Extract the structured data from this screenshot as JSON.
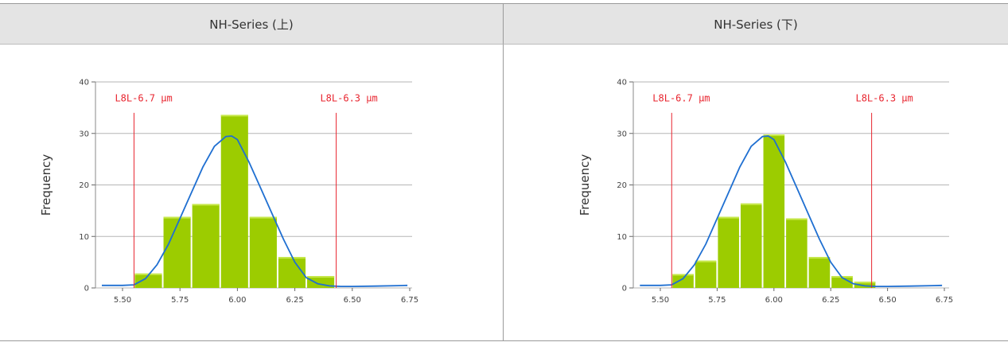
{
  "headers": [
    "NH-Series (上)",
    "NH-Series (下)"
  ],
  "colors": {
    "bar": "#9ccc00",
    "curve": "#1f6fd1",
    "spec_line": "#e8252f",
    "grid": "#b5b5b5"
  },
  "chart_data": [
    {
      "type": "bar",
      "title": "NH-Series (上)",
      "ylabel": "Frequency",
      "xlabel": "",
      "xlim": [
        5.4,
        6.75
      ],
      "ylim": [
        0,
        40
      ],
      "x_ticks": [
        "5.50",
        "5.75",
        "6.00",
        "6.25",
        "6.50",
        "6.75"
      ],
      "y_ticks": [
        "0",
        "10",
        "20",
        "30",
        "40"
      ],
      "grid": "horizontal",
      "bars": [
        {
          "x0": 5.55,
          "x1": 5.675,
          "value": 2.8
        },
        {
          "x0": 5.675,
          "x1": 5.8,
          "value": 13.8
        },
        {
          "x0": 5.8,
          "x1": 5.925,
          "value": 16.3
        },
        {
          "x0": 5.925,
          "x1": 6.05,
          "value": 33.6
        },
        {
          "x0": 6.05,
          "x1": 6.175,
          "value": 13.8
        },
        {
          "x0": 6.175,
          "x1": 6.3,
          "value": 6.0
        },
        {
          "x0": 6.3,
          "x1": 6.425,
          "value": 2.3
        }
      ],
      "curve": {
        "x": [
          5.41,
          5.5,
          5.55,
          5.6,
          5.65,
          5.7,
          5.75,
          5.8,
          5.85,
          5.9,
          5.95,
          5.975,
          6.0,
          6.05,
          6.1,
          6.15,
          6.2,
          6.25,
          6.3,
          6.35,
          6.4,
          6.45,
          6.5,
          6.6,
          6.7,
          6.74
        ],
        "y": [
          0.5,
          0.5,
          0.6,
          1.8,
          4.5,
          8.5,
          13.5,
          18.5,
          23.5,
          27.5,
          29.4,
          29.5,
          28.8,
          24.5,
          19.5,
          14.5,
          9.5,
          5.0,
          2.0,
          0.8,
          0.4,
          0.3,
          0.3,
          0.35,
          0.45,
          0.5
        ]
      },
      "spec_lines": [
        {
          "x": 5.55,
          "label": "L8L-6.7 μm"
        },
        {
          "x": 6.43,
          "label": "L8L-6.3 μm"
        }
      ]
    },
    {
      "type": "bar",
      "title": "NH-Series (下)",
      "ylabel": "Frequency",
      "xlabel": "",
      "xlim": [
        5.4,
        6.75
      ],
      "ylim": [
        0,
        40
      ],
      "x_ticks": [
        "5.50",
        "5.75",
        "6.00",
        "6.25",
        "6.50",
        "6.75"
      ],
      "y_ticks": [
        "0",
        "10",
        "20",
        "30",
        "40"
      ],
      "grid": "horizontal",
      "bars": [
        {
          "x0": 5.55,
          "x1": 5.65,
          "value": 2.7
        },
        {
          "x0": 5.65,
          "x1": 5.75,
          "value": 5.3
        },
        {
          "x0": 5.75,
          "x1": 5.85,
          "value": 13.8
        },
        {
          "x0": 5.85,
          "x1": 5.95,
          "value": 16.4
        },
        {
          "x0": 5.95,
          "x1": 6.05,
          "value": 29.8
        },
        {
          "x0": 6.05,
          "x1": 6.15,
          "value": 13.5
        },
        {
          "x0": 6.15,
          "x1": 6.25,
          "value": 6.0
        },
        {
          "x0": 6.25,
          "x1": 6.35,
          "value": 2.3
        },
        {
          "x0": 6.35,
          "x1": 6.45,
          "value": 1.2
        }
      ],
      "curve": {
        "x": [
          5.41,
          5.5,
          5.55,
          5.6,
          5.65,
          5.7,
          5.75,
          5.8,
          5.85,
          5.9,
          5.95,
          5.975,
          6.0,
          6.05,
          6.1,
          6.15,
          6.2,
          6.25,
          6.3,
          6.35,
          6.4,
          6.45,
          6.5,
          6.6,
          6.7,
          6.74
        ],
        "y": [
          0.5,
          0.5,
          0.6,
          1.8,
          4.5,
          8.5,
          13.5,
          18.5,
          23.5,
          27.5,
          29.4,
          29.5,
          28.8,
          24.5,
          19.5,
          14.5,
          9.5,
          5.0,
          2.0,
          0.8,
          0.4,
          0.3,
          0.3,
          0.35,
          0.45,
          0.5
        ]
      },
      "spec_lines": [
        {
          "x": 5.55,
          "label": "L8L-6.7 μm"
        },
        {
          "x": 6.43,
          "label": "L8L-6.3 μm"
        }
      ]
    }
  ]
}
